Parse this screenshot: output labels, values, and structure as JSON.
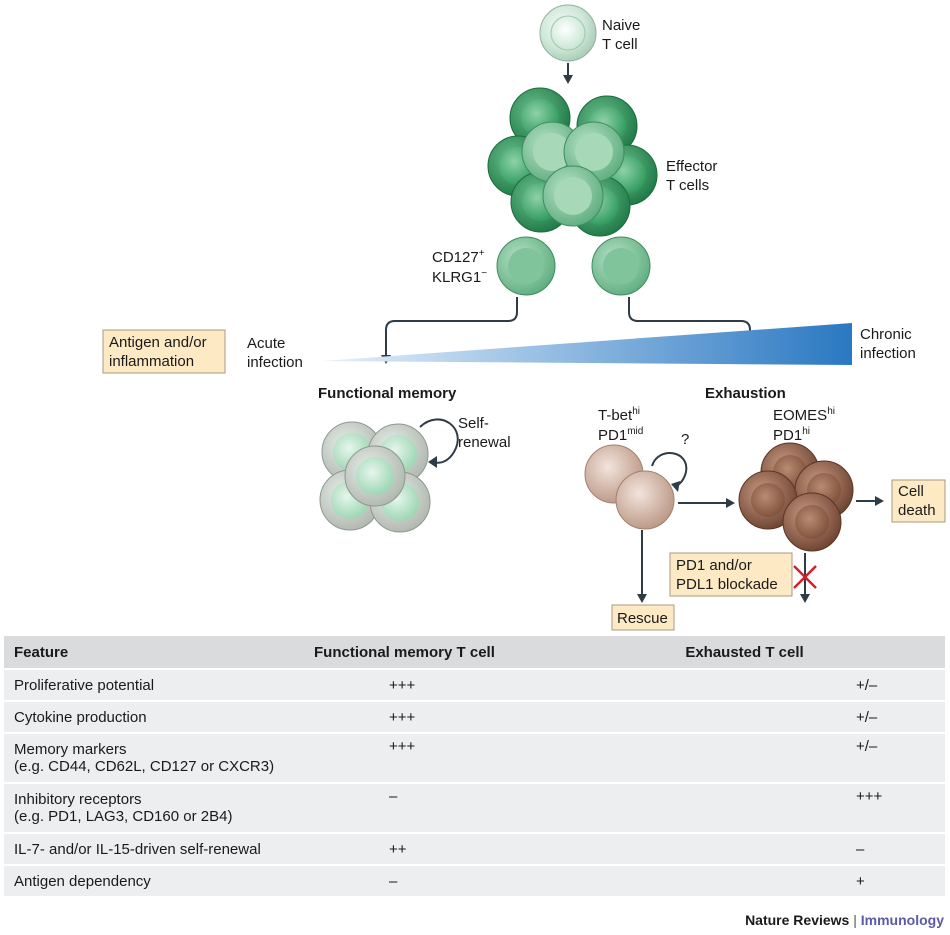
{
  "diagram": {
    "naive_label_1": "Naive",
    "naive_label_2": "T cell",
    "effector_label_1": "Effector",
    "effector_label_2": "T cells",
    "cd127_label": "CD127",
    "cd127_sup": "+",
    "klrg1_label": "KLRG1",
    "klrg1_sup": "−",
    "antigen_box_1": "Antigen and/or",
    "antigen_box_2": "inflammation",
    "acute_1": "Acute",
    "acute_2": "infection",
    "chronic_1": "Chronic",
    "chronic_2": "infection",
    "functional_memory": "Functional memory",
    "exhaustion": "Exhaustion",
    "self_renewal_1": "Self-",
    "self_renewal_2": "renewal",
    "tbet": "T-bet",
    "tbet_sup": "hi",
    "pd1_mid": "PD1",
    "pd1_mid_sup": "mid",
    "question": "?",
    "eomes": "EOMES",
    "eomes_sup": "hi",
    "pd1_hi": "PD1",
    "pd1_hi_sup": "hi",
    "cell_death_1": "Cell",
    "cell_death_2": "death",
    "blockade_1": "PD1 and/or",
    "blockade_2": "PDL1 blockade",
    "rescue": "Rescue"
  },
  "table": {
    "headers": [
      "Feature",
      "Functional memory T cell",
      "Exhausted T cell"
    ],
    "rows": [
      {
        "feature": "Proliferative potential",
        "feature_sub": "",
        "memory": "+++",
        "exhausted": "+/–"
      },
      {
        "feature": "Cytokine production",
        "feature_sub": "",
        "memory": "+++",
        "exhausted": "+/–"
      },
      {
        "feature": "Memory markers",
        "feature_sub": "(e.g. CD44, CD62L, CD127 or CXCR3)",
        "memory": "+++",
        "exhausted": "+/–"
      },
      {
        "feature": "Inhibitory receptors",
        "feature_sub": "(e.g. PD1, LAG3, CD160 or 2B4)",
        "memory": "–",
        "exhausted": "+++"
      },
      {
        "feature": "IL-7- and/or IL-15-driven self-renewal",
        "feature_sub": "",
        "memory": "++",
        "exhausted": "–"
      },
      {
        "feature": "Antigen dependency",
        "feature_sub": "",
        "memory": "–",
        "exhausted": "+"
      }
    ]
  },
  "footer": {
    "journal": "Nature Reviews",
    "separator": "|",
    "section": "Immunology"
  },
  "colors": {
    "naive": "#cfe8d8",
    "effector": "#2f9a5e",
    "memory": "#bfe2cc",
    "exhaustion_mid": "#d7bcae",
    "exhaustion_late": "#9a6a52",
    "gradient_end": "#2a78c2",
    "box_fill": "#fde9c4"
  }
}
